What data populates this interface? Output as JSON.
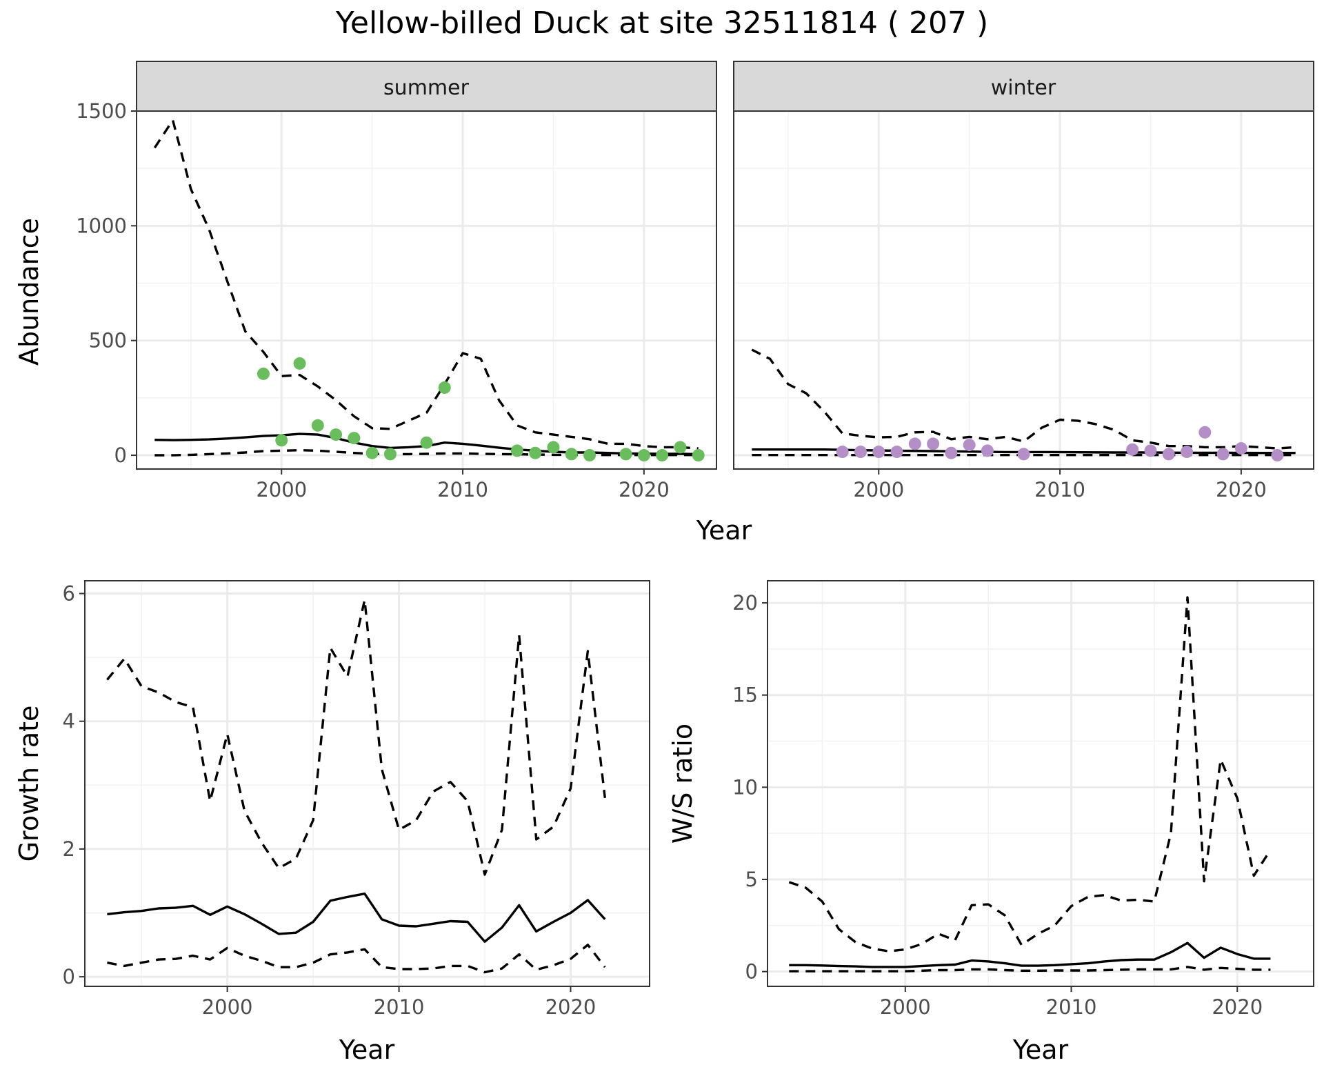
{
  "title": "Yellow-billed Duck at site 32511814 ( 207 )",
  "colors": {
    "summer_points": "#6abd5c",
    "winter_points": "#b48ec6",
    "lines": "#000000"
  },
  "chart_data": [
    {
      "type": "line",
      "id": "abundance",
      "facets": [
        "summer",
        "winter"
      ],
      "xlabel": "Year",
      "ylabel": "Abundance",
      "xlim": [
        1992,
        2024
      ],
      "ylim": [
        -60,
        1500
      ],
      "x_ticks": [
        2000,
        2010,
        2020
      ],
      "y_ticks": [
        0,
        500,
        1000,
        1500
      ],
      "panels": [
        {
          "facet": "summer",
          "point_color": "#6abd5c",
          "series": [
            {
              "style": "solid",
              "x": [
                1993,
                1994,
                1995,
                1996,
                1997,
                1998,
                1999,
                2000,
                2001,
                2002,
                2003,
                2004,
                2005,
                2006,
                2007,
                2008,
                2009,
                2010,
                2011,
                2012,
                2013,
                2014,
                2015,
                2016,
                2017,
                2018,
                2019,
                2020,
                2021,
                2022,
                2023
              ],
              "y": [
                67,
                66,
                67,
                69,
                73,
                78,
                84,
                87,
                93,
                90,
                75,
                55,
                40,
                32,
                35,
                40,
                55,
                50,
                42,
                33,
                25,
                20,
                15,
                12,
                12,
                10,
                8,
                7,
                6,
                6,
                5
              ]
            },
            {
              "style": "dashed",
              "x": [
                1993,
                1994,
                1995,
                1996,
                1997,
                1998,
                1999,
                2000,
                2001,
                2002,
                2003,
                2004,
                2005,
                2006,
                2007,
                2008,
                2009,
                2010,
                2011,
                2012,
                2013,
                2014,
                2015,
                2016,
                2017,
                2018,
                2019,
                2020,
                2021,
                2022,
                2023
              ],
              "y": [
                1340,
                1460,
                1160,
                985,
                760,
                540,
                450,
                345,
                350,
                300,
                240,
                170,
                118,
                115,
                150,
                185,
                310,
                445,
                420,
                240,
                130,
                100,
                90,
                80,
                70,
                50,
                50,
                40,
                35,
                35,
                30
              ]
            },
            {
              "style": "dashed",
              "x": [
                1993,
                1994,
                1995,
                1996,
                1997,
                1998,
                1999,
                2000,
                2001,
                2002,
                2003,
                2004,
                2005,
                2006,
                2007,
                2008,
                2009,
                2010,
                2011,
                2012,
                2013,
                2014,
                2015,
                2016,
                2017,
                2018,
                2019,
                2020,
                2021,
                2022,
                2023
              ],
              "y": [
                0,
                0,
                2,
                5,
                8,
                12,
                18,
                20,
                22,
                20,
                15,
                10,
                6,
                5,
                5,
                6,
                8,
                8,
                6,
                5,
                4,
                3,
                2,
                2,
                1,
                1,
                1,
                1,
                1,
                1,
                1
              ]
            }
          ],
          "points": {
            "x": [
              1999,
              2000,
              2001,
              2002,
              2003,
              2004,
              2005,
              2006,
              2008,
              2009,
              2013,
              2014,
              2015,
              2016,
              2017,
              2019,
              2020,
              2021,
              2022,
              2023
            ],
            "y": [
              355,
              65,
              400,
              130,
              90,
              75,
              10,
              5,
              55,
              295,
              20,
              10,
              35,
              5,
              0,
              5,
              0,
              0,
              35,
              0
            ]
          }
        },
        {
          "facet": "winter",
          "point_color": "#b48ec6",
          "series": [
            {
              "style": "solid",
              "x": [
                1993,
                1995,
                1997,
                1999,
                2001,
                2003,
                2005,
                2007,
                2009,
                2011,
                2013,
                2015,
                2017,
                2019,
                2021,
                2023
              ],
              "y": [
                25,
                25,
                25,
                22,
                20,
                18,
                16,
                14,
                14,
                13,
                12,
                12,
                11,
                11,
                10,
                10
              ]
            },
            {
              "style": "dashed",
              "x": [
                1993,
                1994,
                1995,
                1996,
                1997,
                1998,
                1999,
                2000,
                2001,
                2002,
                2003,
                2004,
                2005,
                2006,
                2007,
                2008,
                2009,
                2010,
                2011,
                2012,
                2013,
                2014,
                2015,
                2016,
                2017,
                2018,
                2019,
                2020,
                2021,
                2022,
                2023
              ],
              "y": [
                460,
                420,
                310,
                270,
                190,
                95,
                85,
                78,
                80,
                100,
                102,
                70,
                80,
                70,
                80,
                60,
                120,
                155,
                150,
                135,
                110,
                65,
                55,
                40,
                40,
                35,
                35,
                40,
                35,
                30,
                35
              ]
            },
            {
              "style": "dashed",
              "x": [
                1993,
                1995,
                1997,
                1999,
                2001,
                2003,
                2005,
                2007,
                2009,
                2011,
                2013,
                2015,
                2017,
                2019,
                2021,
                2023
              ],
              "y": [
                1,
                1,
                1,
                1,
                1,
                1,
                1,
                1,
                1,
                1,
                1,
                1,
                1,
                1,
                1,
                1
              ]
            }
          ],
          "points": {
            "x": [
              1998,
              1999,
              2000,
              2001,
              2002,
              2003,
              2004,
              2005,
              2006,
              2008,
              2014,
              2015,
              2016,
              2017,
              2018,
              2019,
              2020,
              2022
            ],
            "y": [
              15,
              15,
              15,
              15,
              50,
              50,
              10,
              45,
              20,
              5,
              25,
              20,
              5,
              15,
              100,
              5,
              30,
              0
            ]
          }
        }
      ]
    },
    {
      "type": "line",
      "id": "growth",
      "xlabel": "Year",
      "ylabel": "Growth rate",
      "xlim": [
        1991.7,
        2024.6
      ],
      "ylim": [
        -0.15,
        6.2
      ],
      "x_ticks": [
        2000,
        2010,
        2020
      ],
      "y_ticks": [
        0,
        2,
        4,
        6
      ],
      "series": [
        {
          "style": "solid",
          "x": [
            1993,
            1994,
            1995,
            1996,
            1997,
            1998,
            1999,
            2000,
            2001,
            2002,
            2003,
            2004,
            2005,
            2006,
            2007,
            2008,
            2009,
            2010,
            2011,
            2012,
            2013,
            2014,
            2015,
            2016,
            2017,
            2018,
            2019,
            2020,
            2021,
            2022
          ],
          "y": [
            0.98,
            1.01,
            1.03,
            1.07,
            1.08,
            1.11,
            0.97,
            1.1,
            0.98,
            0.83,
            0.67,
            0.69,
            0.86,
            1.19,
            1.25,
            1.3,
            0.9,
            0.8,
            0.79,
            0.83,
            0.87,
            0.86,
            0.55,
            0.77,
            1.12,
            0.71,
            0.86,
            1.0,
            1.2,
            0.9
          ]
        },
        {
          "style": "dashed",
          "x": [
            1993,
            1994,
            1995,
            1996,
            1997,
            1998,
            1999,
            2000,
            2001,
            2002,
            2003,
            2004,
            2005,
            2006,
            2007,
            2008,
            2009,
            2010,
            2011,
            2012,
            2013,
            2014,
            2015,
            2016,
            2017,
            2018,
            2019,
            2020,
            2021,
            2022
          ],
          "y": [
            4.65,
            4.98,
            4.55,
            4.45,
            4.3,
            4.22,
            2.75,
            3.8,
            2.6,
            2.1,
            1.7,
            1.85,
            2.45,
            5.15,
            4.7,
            5.9,
            3.25,
            2.3,
            2.45,
            2.9,
            3.05,
            2.75,
            1.6,
            2.3,
            5.35,
            2.15,
            2.35,
            2.95,
            5.1,
            2.8
          ]
        },
        {
          "style": "dashed",
          "x": [
            1993,
            1994,
            1995,
            1996,
            1997,
            1998,
            1999,
            2000,
            2001,
            2002,
            2003,
            2004,
            2005,
            2006,
            2007,
            2008,
            2009,
            2010,
            2011,
            2012,
            2013,
            2014,
            2015,
            2016,
            2017,
            2018,
            2019,
            2020,
            2021,
            2022
          ],
          "y": [
            0.22,
            0.17,
            0.22,
            0.27,
            0.28,
            0.33,
            0.27,
            0.45,
            0.33,
            0.25,
            0.15,
            0.15,
            0.22,
            0.35,
            0.38,
            0.43,
            0.15,
            0.12,
            0.12,
            0.13,
            0.17,
            0.17,
            0.07,
            0.13,
            0.35,
            0.11,
            0.18,
            0.28,
            0.5,
            0.15
          ]
        }
      ]
    },
    {
      "type": "line",
      "id": "ws_ratio",
      "xlabel": "Year",
      "ylabel": "W/S ratio",
      "xlim": [
        1991.7,
        2024.6
      ],
      "ylim": [
        -0.8,
        21.2
      ],
      "x_ticks": [
        2000,
        2010,
        2020
      ],
      "y_ticks": [
        0,
        5,
        10,
        15,
        20
      ],
      "series": [
        {
          "style": "solid",
          "x": [
            1993,
            1994,
            1995,
            1996,
            1997,
            1998,
            1999,
            2000,
            2001,
            2002,
            2003,
            2004,
            2005,
            2006,
            2007,
            2008,
            2009,
            2010,
            2011,
            2012,
            2013,
            2014,
            2015,
            2016,
            2017,
            2018,
            2019,
            2020,
            2021,
            2022
          ],
          "y": [
            0.35,
            0.35,
            0.33,
            0.3,
            0.28,
            0.25,
            0.25,
            0.25,
            0.3,
            0.35,
            0.38,
            0.6,
            0.55,
            0.45,
            0.32,
            0.32,
            0.35,
            0.4,
            0.45,
            0.55,
            0.62,
            0.65,
            0.65,
            1.05,
            1.55,
            0.75,
            1.3,
            0.95,
            0.7,
            0.7
          ]
        },
        {
          "style": "dashed",
          "x": [
            1993,
            1994,
            1995,
            1996,
            1997,
            1998,
            1999,
            2000,
            2001,
            2002,
            2003,
            2004,
            2005,
            2006,
            2007,
            2008,
            2009,
            2010,
            2011,
            2012,
            2013,
            2014,
            2015,
            2016,
            2017,
            2018,
            2019,
            2020,
            2021,
            2022
          ],
          "y": [
            4.85,
            4.55,
            3.8,
            2.3,
            1.6,
            1.25,
            1.1,
            1.2,
            1.5,
            2.05,
            1.7,
            3.6,
            3.65,
            3.05,
            1.45,
            2.05,
            2.5,
            3.55,
            4.05,
            4.15,
            3.85,
            3.9,
            3.8,
            7.5,
            20.3,
            4.9,
            11.5,
            9.4,
            5.2,
            6.6
          ]
        },
        {
          "style": "dashed",
          "x": [
            1993,
            1994,
            1995,
            1996,
            1997,
            1998,
            1999,
            2000,
            2001,
            2002,
            2003,
            2004,
            2005,
            2006,
            2007,
            2008,
            2009,
            2010,
            2011,
            2012,
            2013,
            2014,
            2015,
            2016,
            2017,
            2018,
            2019,
            2020,
            2021,
            2022
          ],
          "y": [
            0.02,
            0.02,
            0.02,
            0.02,
            0.02,
            0.02,
            0.02,
            0.02,
            0.05,
            0.08,
            0.08,
            0.12,
            0.12,
            0.08,
            0.05,
            0.05,
            0.06,
            0.06,
            0.06,
            0.08,
            0.1,
            0.12,
            0.12,
            0.12,
            0.25,
            0.1,
            0.2,
            0.15,
            0.1,
            0.1
          ]
        }
      ]
    }
  ]
}
